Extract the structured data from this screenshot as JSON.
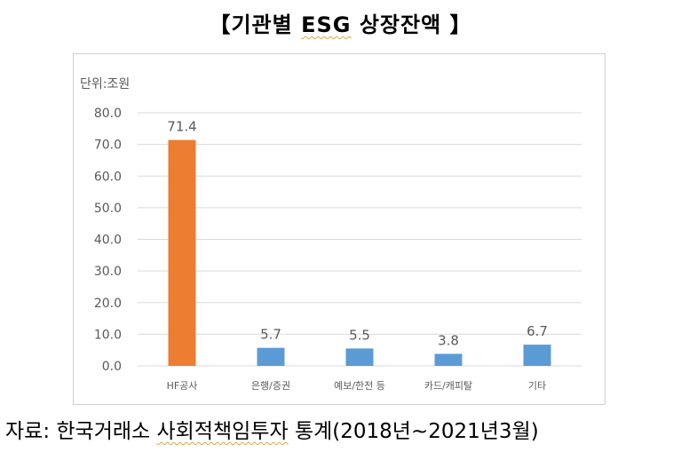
{
  "header": {
    "bracket_open": "【",
    "title_pre": "기관별 ",
    "title_marked": "ESG",
    "title_post": " 상장잔액",
    "bracket_close": "】"
  },
  "source": {
    "label": "자료: ",
    "org": "한국거래소",
    "space": " ",
    "stats_marked": "사회적책임투자",
    "stats_rest": " 통계(2018년~2021년3월)"
  },
  "chart_data": {
    "type": "bar",
    "unit_label": "단위:조원",
    "categories": [
      "HF공사",
      "은행/증권",
      "예보/한전 등",
      "카드/캐피탈",
      "기타"
    ],
    "values": [
      71.4,
      5.7,
      5.5,
      3.8,
      6.7
    ],
    "value_labels": [
      "71.4",
      "5.7",
      "5.5",
      "3.8",
      "6.7"
    ],
    "bar_colors": [
      "#ED7D31",
      "#5B9BD5",
      "#5B9BD5",
      "#5B9BD5",
      "#5B9BD5"
    ],
    "ylim": [
      0,
      80
    ],
    "yticks": [
      0,
      10,
      20,
      30,
      40,
      50,
      60,
      70,
      80
    ],
    "ytick_labels": [
      "0.0",
      "10.0",
      "20.0",
      "30.0",
      "40.0",
      "50.0",
      "60.0",
      "70.0",
      "80.0"
    ],
    "grid": true,
    "grid_color": "#d9d9d9",
    "text_color": "#595959"
  }
}
